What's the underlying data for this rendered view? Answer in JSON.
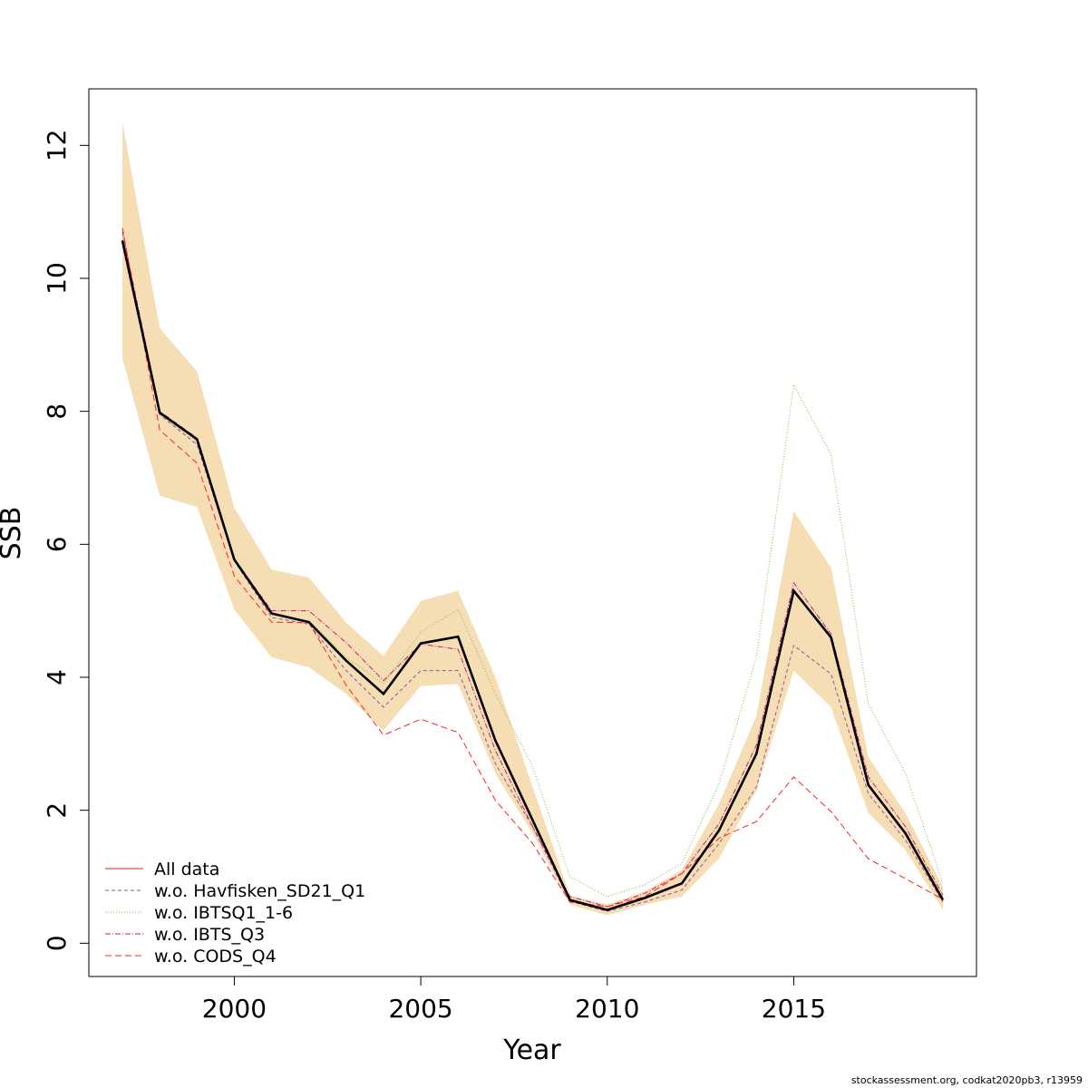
{
  "chart_data": {
    "type": "line",
    "xlabel": "Year",
    "ylabel": "SSB",
    "xlim": [
      1996.1,
      2019.9
    ],
    "ylim": [
      -0.5,
      12.85
    ],
    "x_ticks": [
      2000,
      2005,
      2010,
      2015
    ],
    "y_ticks": [
      0,
      2,
      4,
      6,
      8,
      10,
      12
    ],
    "grid": false,
    "legend_position": "bottom-left",
    "x": [
      1997,
      1998,
      1999,
      2000,
      2001,
      2002,
      2003,
      2004,
      2005,
      2006,
      2007,
      2008,
      2009,
      2010,
      2011,
      2012,
      2013,
      2014,
      2015,
      2016,
      2017,
      2018,
      2019
    ],
    "band": {
      "color": "#f5deb3",
      "upper": [
        12.35,
        9.25,
        8.6,
        6.55,
        5.62,
        5.5,
        4.82,
        4.32,
        5.15,
        5.3,
        4.0,
        2.35,
        0.72,
        0.58,
        0.78,
        1.1,
        2.1,
        3.42,
        6.5,
        5.65,
        2.8,
        1.95,
        0.85
      ],
      "lower": [
        8.8,
        6.73,
        6.56,
        5.02,
        4.3,
        4.15,
        3.75,
        3.2,
        3.87,
        3.9,
        2.55,
        1.65,
        0.58,
        0.42,
        0.58,
        0.7,
        1.28,
        2.3,
        4.1,
        3.55,
        1.96,
        1.4,
        0.5
      ]
    },
    "main": {
      "color": "#000000",
      "values": [
        10.57,
        7.98,
        7.58,
        5.77,
        4.96,
        4.83,
        4.25,
        3.75,
        4.51,
        4.61,
        3.05,
        1.85,
        0.65,
        0.5,
        0.68,
        0.9,
        1.7,
        2.85,
        5.3,
        4.6,
        2.38,
        1.65,
        0.65
      ]
    },
    "series": [
      {
        "name": "All data",
        "color": "#e41a1c",
        "dash": "",
        "values": [
          10.57,
          7.98,
          7.58,
          5.77,
          4.96,
          4.83,
          4.25,
          3.75,
          4.51,
          4.61,
          3.05,
          1.85,
          0.65,
          0.5,
          0.68,
          0.9,
          1.7,
          2.85,
          5.3,
          4.6,
          2.38,
          1.65,
          0.65
        ]
      },
      {
        "name": "w.o. Havfisken_SD21_Q1",
        "color": "#984ea3",
        "dash": "4,3",
        "values": [
          10.5,
          7.95,
          7.5,
          5.75,
          4.9,
          4.8,
          4.1,
          3.55,
          4.1,
          4.1,
          2.7,
          1.75,
          0.63,
          0.48,
          0.62,
          0.8,
          1.5,
          2.35,
          4.48,
          4.05,
          2.25,
          1.55,
          0.62
        ]
      },
      {
        "name": "w.o. IBTSQ1_1-6",
        "color": "#7bc043",
        "dash": "1,2",
        "values": [
          10.6,
          7.95,
          7.55,
          5.8,
          4.95,
          4.85,
          4.3,
          3.9,
          4.68,
          5.02,
          3.75,
          2.65,
          1.0,
          0.7,
          0.88,
          1.2,
          2.4,
          4.3,
          8.4,
          7.35,
          3.6,
          2.55,
          0.9
        ]
      },
      {
        "name": "w.o. IBTS_Q3",
        "color": "#c51b7d",
        "dash": "6,2,1,2",
        "values": [
          10.7,
          8.0,
          7.6,
          5.78,
          5.0,
          5.0,
          4.52,
          3.95,
          4.5,
          4.42,
          2.9,
          1.75,
          0.7,
          0.55,
          0.75,
          1.05,
          1.8,
          2.98,
          5.42,
          4.65,
          2.5,
          1.75,
          0.72
        ]
      },
      {
        "name": "w.o. CODS_Q4",
        "color": "#ff2020",
        "dash": "7,4",
        "values": [
          10.76,
          7.72,
          7.22,
          5.52,
          4.83,
          4.82,
          3.88,
          3.13,
          3.37,
          3.17,
          2.15,
          1.5,
          0.62,
          0.55,
          0.7,
          1.05,
          1.58,
          1.83,
          2.5,
          1.98,
          1.27,
          0.97,
          0.66
        ]
      }
    ]
  },
  "footer": {
    "credit": "stockassessment.org, codkat2020pb3, r13959"
  }
}
